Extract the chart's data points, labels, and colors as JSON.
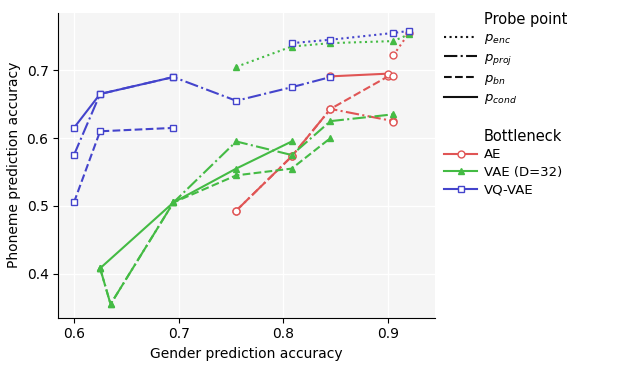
{
  "xlabel": "Gender prediction accuracy",
  "ylabel": "Phoneme prediction accuracy",
  "xlim": [
    0.585,
    0.945
  ],
  "ylim": [
    0.335,
    0.785
  ],
  "xticks": [
    0.6,
    0.7,
    0.8,
    0.9
  ],
  "yticks": [
    0.4,
    0.5,
    0.6,
    0.7
  ],
  "AE_enc": {
    "x": [
      0.905,
      0.92
    ],
    "y": [
      0.722,
      0.755
    ]
  },
  "AE_proj": {
    "x": [
      0.755,
      0.808,
      0.845,
      0.905,
      0.905
    ],
    "y": [
      0.493,
      0.573,
      0.643,
      0.625,
      0.623
    ]
  },
  "AE_bn": {
    "x": [
      0.755,
      0.808,
      0.845,
      0.9
    ],
    "y": [
      0.493,
      0.573,
      0.643,
      0.691
    ]
  },
  "AE_cond": {
    "x": [
      0.845,
      0.9,
      0.905
    ],
    "y": [
      0.691,
      0.695,
      0.691
    ]
  },
  "VAE_enc": {
    "x": [
      0.755,
      0.808,
      0.845,
      0.905,
      0.92
    ],
    "y": [
      0.705,
      0.735,
      0.74,
      0.743,
      0.753
    ]
  },
  "VAE_proj": {
    "x": [
      0.625,
      0.635,
      0.695,
      0.755,
      0.808,
      0.845,
      0.905
    ],
    "y": [
      0.408,
      0.355,
      0.505,
      0.595,
      0.575,
      0.625,
      0.635
    ]
  },
  "VAE_bn": {
    "x": [
      0.625,
      0.635,
      0.695,
      0.755,
      0.808,
      0.845
    ],
    "y": [
      0.408,
      0.355,
      0.505,
      0.545,
      0.555,
      0.6
    ]
  },
  "VAE_cond": {
    "x": [
      0.625,
      0.695,
      0.755,
      0.808
    ],
    "y": [
      0.408,
      0.505,
      0.555,
      0.595
    ]
  },
  "VQ_enc": {
    "x": [
      0.808,
      0.845,
      0.905,
      0.92
    ],
    "y": [
      0.74,
      0.745,
      0.755,
      0.758
    ]
  },
  "VQ_proj": {
    "x": [
      0.6,
      0.625,
      0.695,
      0.755,
      0.808,
      0.845
    ],
    "y": [
      0.575,
      0.665,
      0.69,
      0.655,
      0.675,
      0.69
    ]
  },
  "VQ_bn": {
    "x": [
      0.6,
      0.625,
      0.695
    ],
    "y": [
      0.505,
      0.61,
      0.615
    ]
  },
  "VQ_cond": {
    "x": [
      0.6,
      0.625,
      0.695
    ],
    "y": [
      0.615,
      0.665,
      0.69
    ]
  },
  "color_AE": "#e05555",
  "color_VAE": "#44bb44",
  "color_VQ": "#4444cc",
  "figsize": [
    6.4,
    3.68
  ],
  "dpi": 100
}
